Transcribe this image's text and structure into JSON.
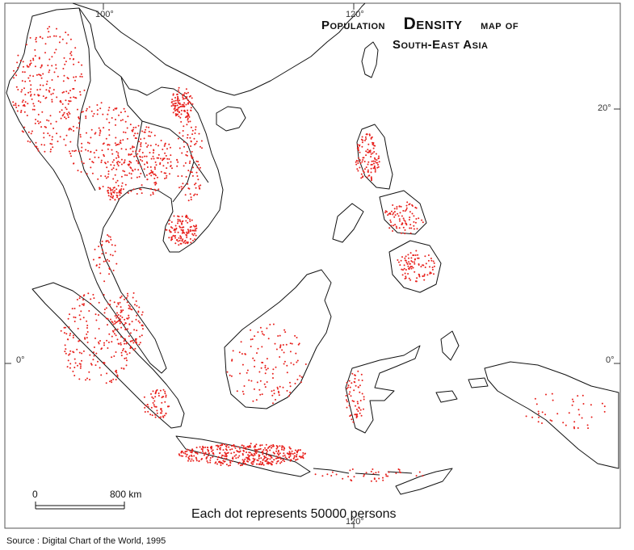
{
  "map": {
    "title_line1_a": "Population",
    "title_line1_b": "Density",
    "title_line1_c": "map of",
    "title_line2": "South-East Asia",
    "graticule_labels": {
      "lon_100_top": "100°",
      "lon_120_top": "120°",
      "lon_120_bottom": "120°",
      "lat_20_right": "20°",
      "lat_0_left": "0°",
      "lat_0_right": "0°"
    },
    "scale": {
      "start_label": "0",
      "end_label": "800 km"
    },
    "legend_text": "Each dot represents 50000 persons",
    "source_text": "Source : Digital Chart of the World, 1995",
    "colors": {
      "dot": "#e8201c",
      "coast": "#111111",
      "frame": "#555555",
      "background": "#ffffff"
    }
  }
}
